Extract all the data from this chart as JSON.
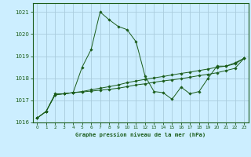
{
  "title": "Graphe pression niveau de la mer (hPa)",
  "bg_color": "#cceeff",
  "grid_color": "#aaccdd",
  "line_color": "#1a5c1a",
  "marker_color": "#1a5c1a",
  "xlim": [
    -0.5,
    23.5
  ],
  "ylim": [
    1016,
    1021.4
  ],
  "xticks": [
    0,
    1,
    2,
    3,
    4,
    5,
    6,
    7,
    8,
    9,
    10,
    11,
    12,
    13,
    14,
    15,
    16,
    17,
    18,
    19,
    20,
    21,
    22,
    23
  ],
  "yticks": [
    1016,
    1017,
    1018,
    1019,
    1020,
    1021
  ],
  "series": [
    {
      "x": [
        0,
        1,
        2,
        3,
        4,
        5,
        6,
        7,
        8,
        9,
        10,
        11,
        12,
        13,
        14,
        15,
        16,
        17,
        18,
        19,
        20,
        21,
        22,
        23
      ],
      "y": [
        1016.2,
        1016.5,
        1017.3,
        1017.3,
        1017.35,
        1018.5,
        1019.3,
        1021.0,
        1020.65,
        1020.35,
        1020.2,
        1019.65,
        1018.1,
        1017.4,
        1017.35,
        1017.05,
        1017.6,
        1017.3,
        1017.4,
        1018.0,
        1018.55,
        1018.55,
        1018.7,
        1018.9
      ]
    },
    {
      "x": [
        0,
        1,
        2,
        3,
        4,
        5,
        6,
        7,
        8,
        9,
        10,
        11,
        12,
        13,
        14,
        15,
        16,
        17,
        18,
        19,
        20,
        21,
        22,
        23
      ],
      "y": [
        1016.2,
        1016.5,
        1017.25,
        1017.3,
        1017.35,
        1017.4,
        1017.48,
        1017.55,
        1017.62,
        1017.7,
        1017.8,
        1017.88,
        1017.95,
        1018.02,
        1018.08,
        1018.15,
        1018.22,
        1018.28,
        1018.35,
        1018.42,
        1018.5,
        1018.55,
        1018.65,
        1018.9
      ]
    },
    {
      "x": [
        0,
        1,
        2,
        3,
        4,
        5,
        6,
        7,
        8,
        9,
        10,
        11,
        12,
        13,
        14,
        15,
        16,
        17,
        18,
        19,
        20,
        21,
        22,
        23
      ],
      "y": [
        1016.2,
        1016.5,
        1017.25,
        1017.3,
        1017.35,
        1017.38,
        1017.42,
        1017.46,
        1017.5,
        1017.55,
        1017.62,
        1017.7,
        1017.75,
        1017.82,
        1017.88,
        1017.93,
        1017.98,
        1018.05,
        1018.12,
        1018.18,
        1018.25,
        1018.35,
        1018.45,
        1018.9
      ]
    }
  ]
}
